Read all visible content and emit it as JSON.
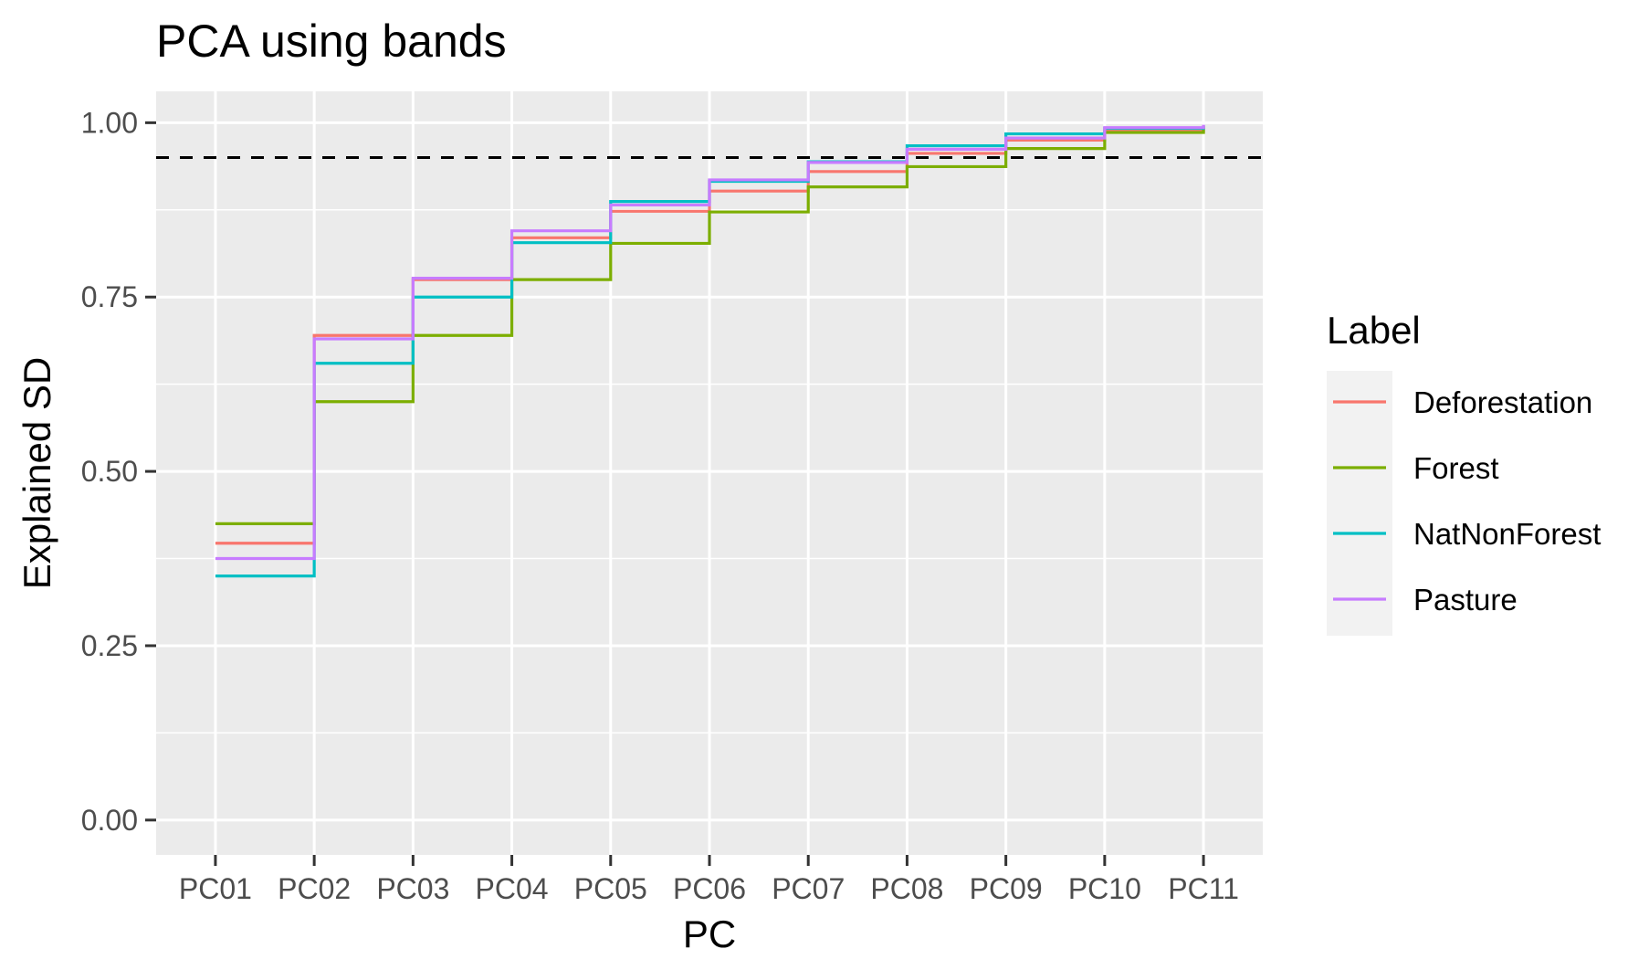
{
  "chart_data": {
    "type": "line",
    "step": true,
    "title": "PCA using bands",
    "xlabel": "PC",
    "ylabel": "Explained SD",
    "categories": [
      "PC01",
      "PC02",
      "PC03",
      "PC04",
      "PC05",
      "PC06",
      "PC07",
      "PC08",
      "PC09",
      "PC10",
      "PC11"
    ],
    "ylim": [
      -0.05,
      1.045
    ],
    "yticks": [
      0.0,
      0.25,
      0.5,
      0.75,
      1.0
    ],
    "ytick_labels": [
      "0.00",
      "0.25",
      "0.50",
      "0.75",
      "1.00"
    ],
    "reference_line": {
      "y": 0.95,
      "style": "dashed",
      "color": "#000000"
    },
    "grid": true,
    "legend": {
      "title": "Label",
      "position": "right"
    },
    "series": [
      {
        "name": "Deforestation",
        "color": "#F8766D",
        "values": [
          0.397,
          0.695,
          0.775,
          0.835,
          0.873,
          0.902,
          0.93,
          0.956,
          0.975,
          0.988,
          0.996
        ]
      },
      {
        "name": "Forest",
        "color": "#7CAE00",
        "values": [
          0.425,
          0.6,
          0.695,
          0.775,
          0.827,
          0.872,
          0.908,
          0.937,
          0.963,
          0.986,
          0.993
        ]
      },
      {
        "name": "NatNonForest",
        "color": "#00BFC4",
        "values": [
          0.35,
          0.655,
          0.75,
          0.828,
          0.887,
          0.916,
          0.944,
          0.967,
          0.984,
          0.992,
          0.996
        ]
      },
      {
        "name": "Pasture",
        "color": "#C77CFF",
        "values": [
          0.375,
          0.69,
          0.777,
          0.845,
          0.882,
          0.918,
          0.943,
          0.962,
          0.978,
          0.993,
          0.997
        ]
      }
    ]
  }
}
